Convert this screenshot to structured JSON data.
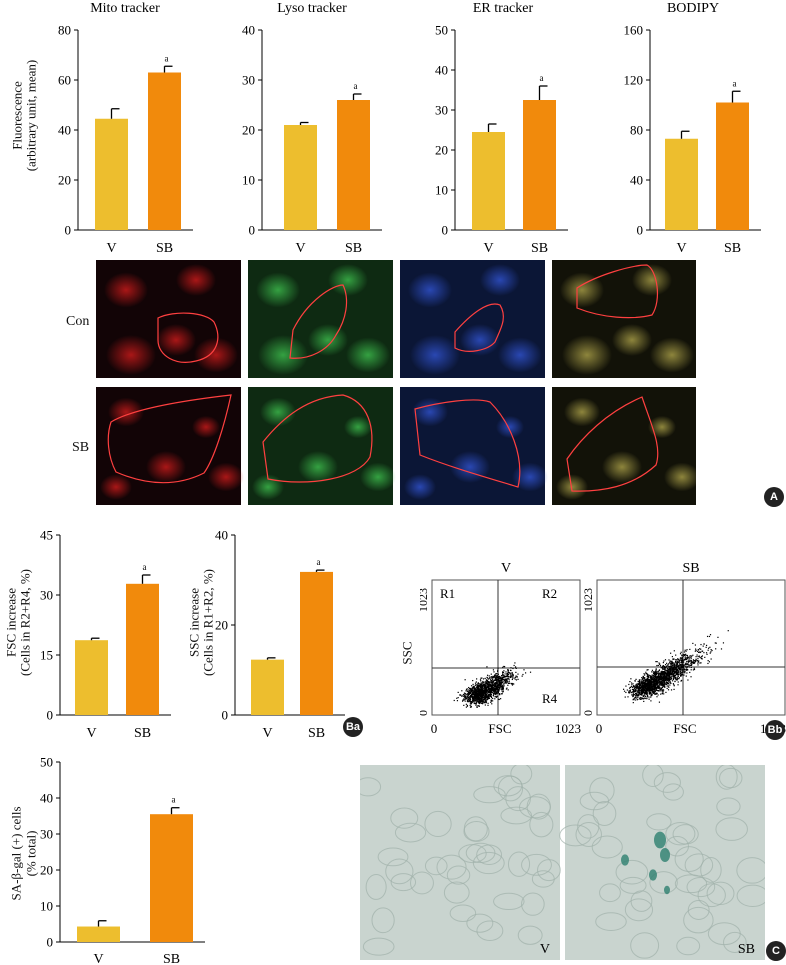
{
  "colors": {
    "v_bar": "#EDBE2E",
    "sb_bar": "#F18A0C",
    "cell_outline": "#ff4040"
  },
  "chart_data": [
    {
      "id": "mito",
      "type": "bar",
      "title": "Mito tracker",
      "categories": [
        "V",
        "SB"
      ],
      "values": [
        44.5,
        63.0
      ],
      "errors": [
        4.0,
        2.5
      ],
      "sig": [
        "",
        "a"
      ],
      "ylim": [
        0,
        80
      ],
      "yticks": [
        "0",
        "20",
        "40",
        "60",
        "80"
      ],
      "ylabel_lines": [
        "Fluorescence",
        "(arbitrary unit, mean)"
      ]
    },
    {
      "id": "lyso",
      "type": "bar",
      "title": "Lyso tracker",
      "categories": [
        "V",
        "SB"
      ],
      "values": [
        21.0,
        26.0
      ],
      "errors": [
        0.5,
        1.2
      ],
      "sig": [
        "",
        "a"
      ],
      "ylim": [
        0,
        40
      ],
      "yticks": [
        "0",
        "10",
        "20",
        "30",
        "40"
      ],
      "ylabel_lines": []
    },
    {
      "id": "er",
      "type": "bar",
      "title": "ER tracker",
      "categories": [
        "V",
        "SB"
      ],
      "values": [
        24.5,
        32.5
      ],
      "errors": [
        2.0,
        3.5
      ],
      "sig": [
        "",
        "a"
      ],
      "ylim": [
        0,
        50
      ],
      "yticks": [
        "0",
        "10",
        "20",
        "30",
        "40",
        "50"
      ],
      "ylabel_lines": []
    },
    {
      "id": "bodipy",
      "type": "bar",
      "title": "BODIPY",
      "categories": [
        "V",
        "SB"
      ],
      "values": [
        73.0,
        102.0
      ],
      "errors": [
        6.0,
        9.0
      ],
      "sig": [
        "",
        "a"
      ],
      "ylim": [
        0,
        160
      ],
      "yticks": [
        "0",
        "40",
        "80",
        "120",
        "160"
      ],
      "ylabel_lines": []
    },
    {
      "id": "fsc",
      "type": "bar",
      "title": "",
      "categories": [
        "V",
        "SB"
      ],
      "values": [
        18.7,
        32.8
      ],
      "errors": [
        0.5,
        2.2
      ],
      "sig": [
        "",
        "a"
      ],
      "ylim": [
        0,
        45
      ],
      "yticks": [
        "0",
        "15",
        "30",
        "45"
      ],
      "ylabel_lines": [
        "FSC increase",
        "(Cells in R2+R4, %)"
      ]
    },
    {
      "id": "ssc",
      "type": "bar",
      "title": "",
      "categories": [
        "V",
        "SB"
      ],
      "values": [
        12.3,
        31.8
      ],
      "errors": [
        0.4,
        0.4
      ],
      "sig": [
        "",
        "a"
      ],
      "ylim": [
        0,
        40
      ],
      "yticks": [
        "0",
        "20",
        "40"
      ],
      "ylabel_lines": [
        "SSC increase",
        "(Cells in R1+R2, %)"
      ]
    },
    {
      "id": "sagal",
      "type": "bar",
      "title": "",
      "categories": [
        "V",
        "SB"
      ],
      "values": [
        4.3,
        35.5
      ],
      "errors": [
        1.6,
        1.8
      ],
      "sig": [
        "",
        "a"
      ],
      "ylim": [
        0,
        50
      ],
      "yticks": [
        "0",
        "10",
        "20",
        "30",
        "40",
        "50"
      ],
      "ylabel_lines": [
        "SA-β-gal (+) cells",
        "(% total)"
      ]
    }
  ],
  "micrographs": {
    "row_labels": [
      "Con",
      "SB"
    ],
    "panels": [
      {
        "name": "mito",
        "stain_color": "#c41a1a",
        "bg": "#120406"
      },
      {
        "name": "lyso",
        "stain_color": "#3bb64a",
        "bg": "#0e2a12"
      },
      {
        "name": "er",
        "stain_color": "#2f50c8",
        "bg": "#0b1636"
      },
      {
        "name": "bodipy",
        "stain_color": "#a49a46",
        "bg": "#121208"
      }
    ]
  },
  "flow": {
    "plots": [
      {
        "title": "V",
        "region_labels": [
          "R1",
          "R2",
          "R4"
        ]
      },
      {
        "title": "SB",
        "region_labels": []
      }
    ],
    "xlabel": "FSC",
    "ylabel": "SSC",
    "x_ticks": [
      "0",
      "1023"
    ],
    "y_ticks": [
      "1023",
      "0"
    ]
  },
  "sagal_images": {
    "labels": [
      "V",
      "SB"
    ]
  },
  "panel_badges": {
    "A": "A",
    "Ba": "Ba",
    "Bb": "Bb",
    "C": "C"
  }
}
